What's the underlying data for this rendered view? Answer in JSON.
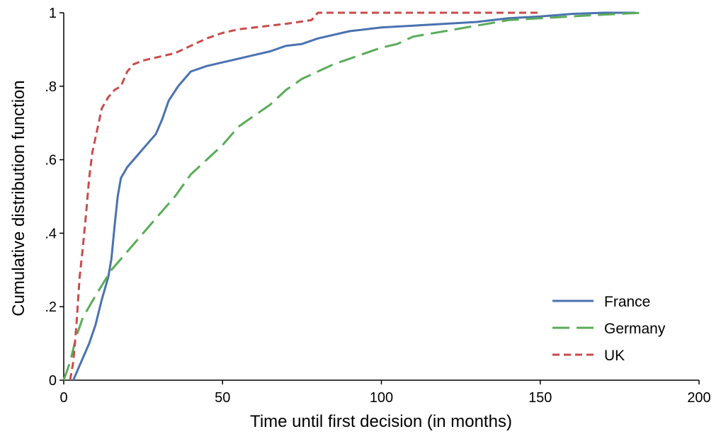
{
  "chart_data": {
    "type": "line",
    "xlabel": "Time until first decision (in months)",
    "ylabel": "Cumulative distribution function",
    "xlim": [
      0,
      200
    ],
    "ylim": [
      0,
      1
    ],
    "xticks": [
      0,
      50,
      100,
      150,
      200
    ],
    "xtick_labels": [
      "0",
      "50",
      "100",
      "150",
      "200"
    ],
    "yticks": [
      0,
      0.2,
      0.4,
      0.6,
      0.8,
      1
    ],
    "ytick_labels": [
      "0",
      ".2",
      ".4",
      ".6",
      ".8",
      "1"
    ],
    "grid": false,
    "legend_position": "bottom-right",
    "series": [
      {
        "name": "France",
        "color": "#4a72b0",
        "dash": "solid",
        "points": [
          [
            3,
            0
          ],
          [
            5,
            0.04
          ],
          [
            8,
            0.1
          ],
          [
            10,
            0.15
          ],
          [
            12,
            0.22
          ],
          [
            14,
            0.28
          ],
          [
            15,
            0.33
          ],
          [
            16,
            0.42
          ],
          [
            17,
            0.5
          ],
          [
            18,
            0.55
          ],
          [
            20,
            0.58
          ],
          [
            23,
            0.61
          ],
          [
            26,
            0.64
          ],
          [
            29,
            0.67
          ],
          [
            31,
            0.71
          ],
          [
            33,
            0.76
          ],
          [
            36,
            0.8
          ],
          [
            40,
            0.84
          ],
          [
            45,
            0.855
          ],
          [
            50,
            0.865
          ],
          [
            55,
            0.875
          ],
          [
            60,
            0.885
          ],
          [
            65,
            0.895
          ],
          [
            70,
            0.91
          ],
          [
            75,
            0.915
          ],
          [
            80,
            0.93
          ],
          [
            90,
            0.95
          ],
          [
            100,
            0.96
          ],
          [
            110,
            0.965
          ],
          [
            120,
            0.97
          ],
          [
            130,
            0.975
          ],
          [
            140,
            0.985
          ],
          [
            150,
            0.99
          ],
          [
            160,
            0.997
          ],
          [
            170,
            1.0
          ],
          [
            180,
            1.0
          ]
        ]
      },
      {
        "name": "Germany",
        "color": "#5aac5a",
        "dash": "long",
        "points": [
          [
            0,
            0
          ],
          [
            2,
            0.05
          ],
          [
            4,
            0.12
          ],
          [
            6,
            0.17
          ],
          [
            10,
            0.23
          ],
          [
            15,
            0.3
          ],
          [
            20,
            0.35
          ],
          [
            25,
            0.4
          ],
          [
            30,
            0.45
          ],
          [
            35,
            0.5
          ],
          [
            40,
            0.56
          ],
          [
            45,
            0.6
          ],
          [
            50,
            0.64
          ],
          [
            55,
            0.69
          ],
          [
            60,
            0.72
          ],
          [
            65,
            0.75
          ],
          [
            70,
            0.79
          ],
          [
            75,
            0.82
          ],
          [
            80,
            0.84
          ],
          [
            85,
            0.86
          ],
          [
            90,
            0.875
          ],
          [
            95,
            0.89
          ],
          [
            100,
            0.905
          ],
          [
            105,
            0.915
          ],
          [
            110,
            0.935
          ],
          [
            120,
            0.95
          ],
          [
            130,
            0.965
          ],
          [
            140,
            0.98
          ],
          [
            150,
            0.985
          ],
          [
            160,
            0.99
          ],
          [
            170,
            0.995
          ],
          [
            182,
            1.0
          ]
        ]
      },
      {
        "name": "UK",
        "color": "#c84c4c",
        "dash": "short",
        "points": [
          [
            2,
            0
          ],
          [
            3,
            0.05
          ],
          [
            4,
            0.15
          ],
          [
            5,
            0.28
          ],
          [
            6,
            0.36
          ],
          [
            7,
            0.45
          ],
          [
            8,
            0.55
          ],
          [
            9,
            0.62
          ],
          [
            10,
            0.66
          ],
          [
            11,
            0.7
          ],
          [
            12,
            0.74
          ],
          [
            14,
            0.77
          ],
          [
            16,
            0.79
          ],
          [
            18,
            0.8
          ],
          [
            20,
            0.84
          ],
          [
            22,
            0.86
          ],
          [
            25,
            0.87
          ],
          [
            30,
            0.88
          ],
          [
            35,
            0.89
          ],
          [
            40,
            0.91
          ],
          [
            45,
            0.93
          ],
          [
            50,
            0.945
          ],
          [
            55,
            0.955
          ],
          [
            60,
            0.96
          ],
          [
            65,
            0.965
          ],
          [
            70,
            0.97
          ],
          [
            78,
            0.98
          ],
          [
            80,
            1.0
          ],
          [
            100,
            1.0
          ],
          [
            120,
            1.0
          ],
          [
            150,
            1.0
          ]
        ]
      }
    ]
  }
}
